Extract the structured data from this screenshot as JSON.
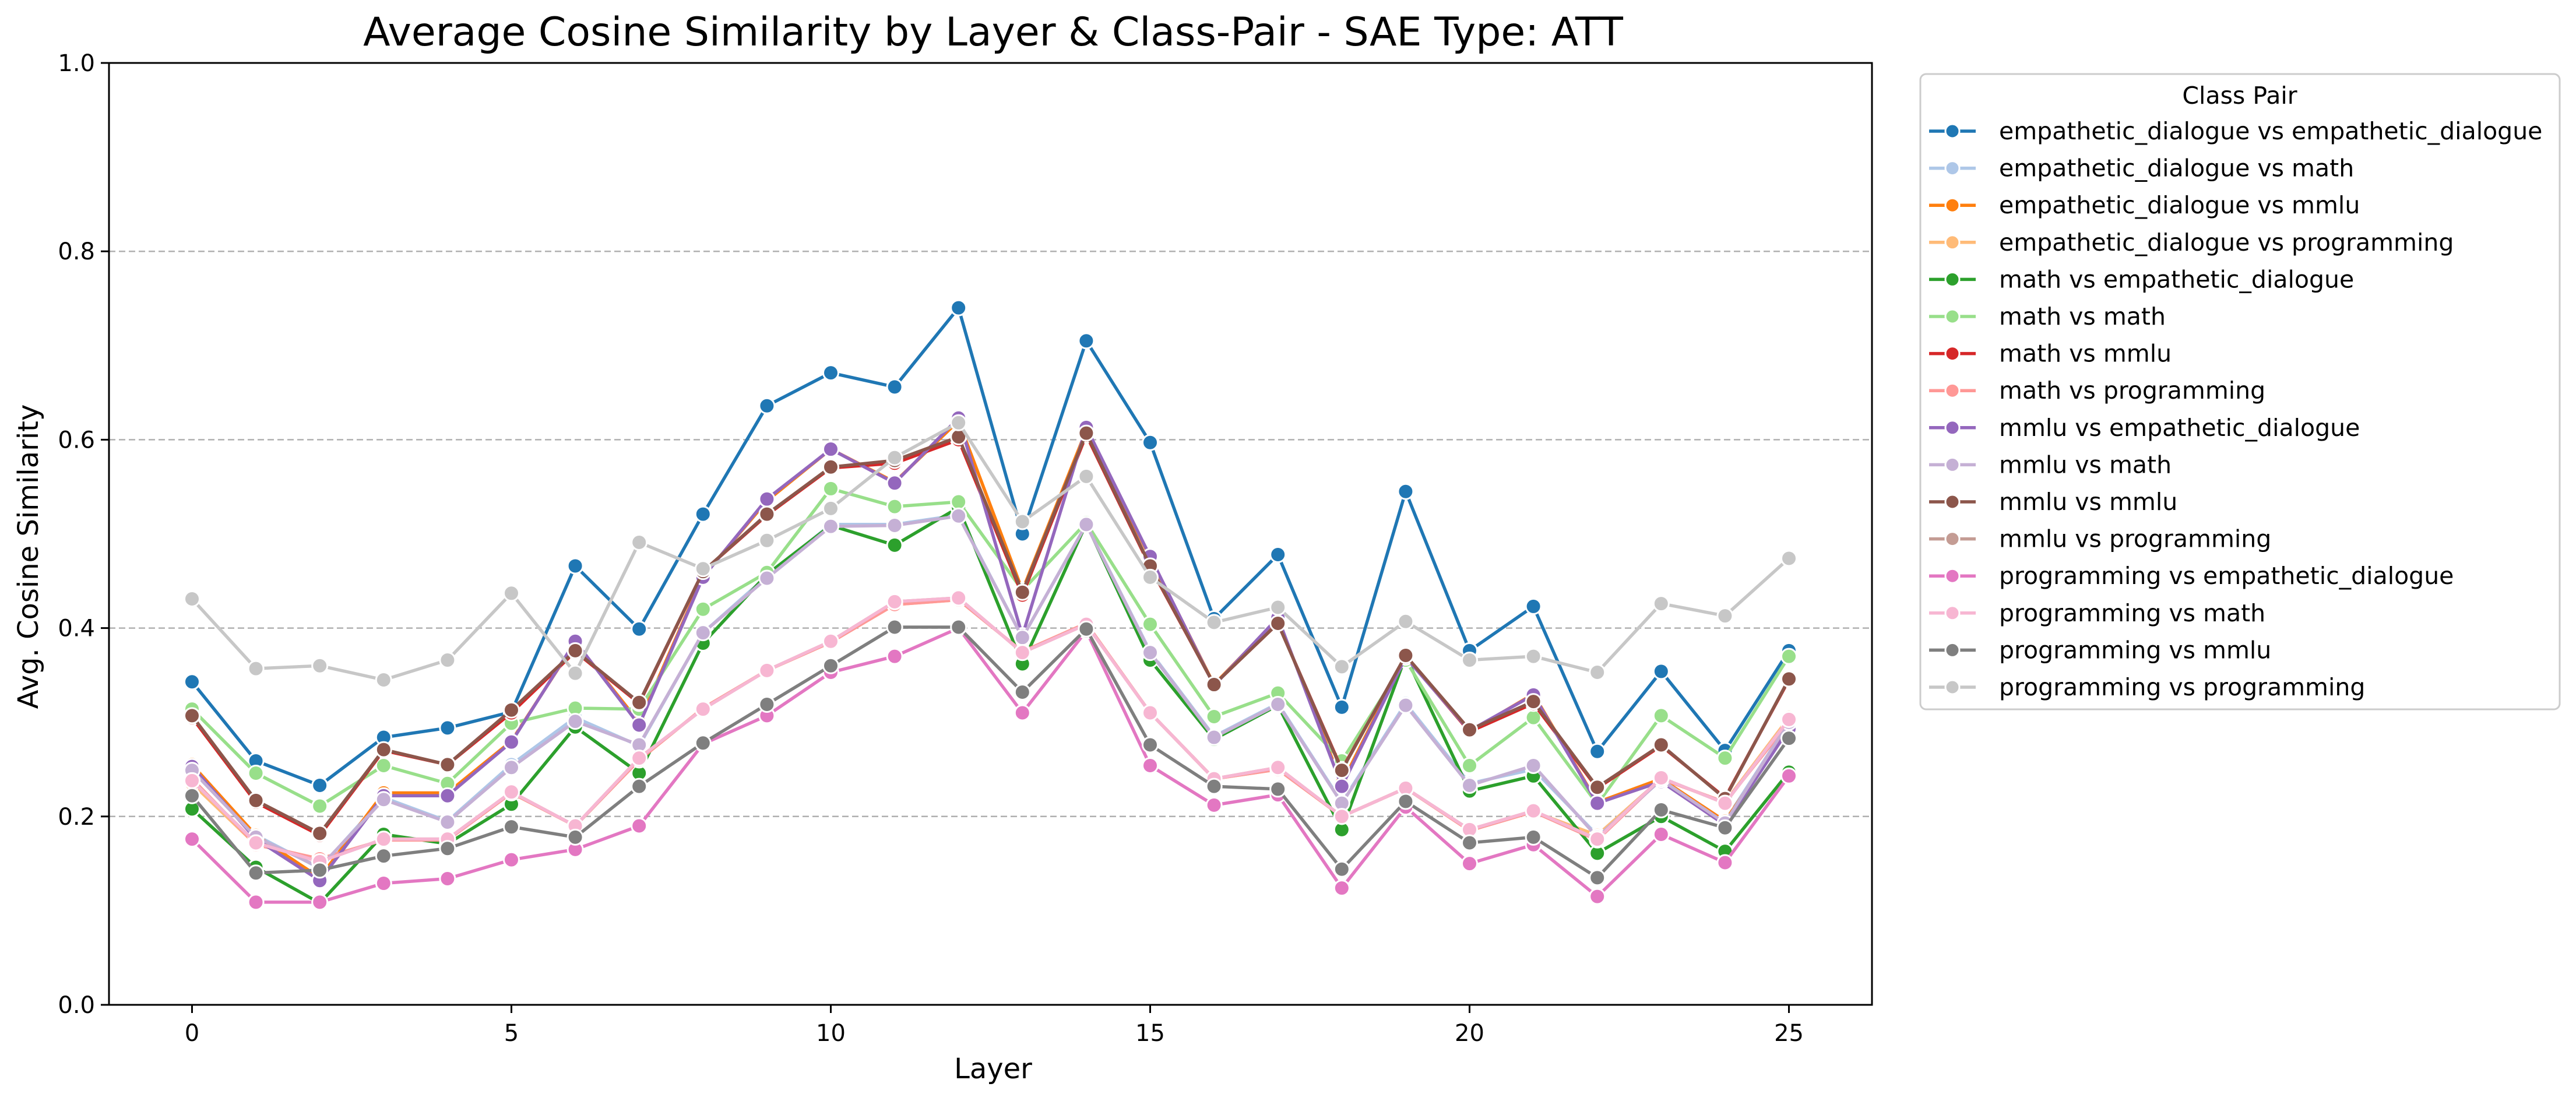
{
  "chart_data": {
    "type": "line",
    "title": "Average Cosine Similarity by Layer & Class-Pair - SAE Type: ATT",
    "xlabel": "Layer",
    "ylabel": "Avg. Cosine Similarity",
    "xlim": [
      -1.3,
      26.3
    ],
    "ylim": [
      0.0,
      1.0
    ],
    "xticks": [
      0,
      5,
      10,
      15,
      20,
      25
    ],
    "yticks": [
      0.0,
      0.2,
      0.4,
      0.6,
      0.8,
      1.0
    ],
    "ytick_labels": [
      "0.0",
      "0.2",
      "0.4",
      "0.6",
      "0.8",
      "1.0"
    ],
    "grid": "horizontal dashed",
    "legend_title": "Class Pair",
    "legend_position": "outside right",
    "x": [
      0,
      1,
      2,
      3,
      4,
      5,
      6,
      7,
      8,
      9,
      10,
      11,
      12,
      13,
      14,
      15,
      16,
      17,
      18,
      19,
      20,
      21,
      22,
      23,
      24,
      25
    ],
    "series": [
      {
        "name": "empathetic_dialogue vs empathetic_dialogue",
        "color": "#1f77b4",
        "values": [
          0.343,
          0.259,
          0.233,
          0.284,
          0.294,
          0.311,
          0.466,
          0.399,
          0.521,
          0.636,
          0.671,
          0.656,
          0.74,
          0.5,
          0.705,
          0.597,
          0.41,
          0.478,
          0.316,
          0.545,
          0.376,
          0.423,
          0.269,
          0.354,
          0.27,
          0.376
        ]
      },
      {
        "name": "empathetic_dialogue vs math",
        "color": "#aec7e8",
        "values": [
          0.25,
          0.18,
          0.145,
          0.22,
          0.195,
          0.255,
          0.305,
          0.275,
          0.395,
          0.455,
          0.51,
          0.51,
          0.52,
          0.39,
          0.51,
          0.375,
          0.285,
          0.32,
          0.215,
          0.32,
          0.235,
          0.25,
          0.18,
          0.24,
          0.195,
          0.3
        ]
      },
      {
        "name": "empathetic_dialogue vs mmlu",
        "color": "#ff7f0e",
        "values": [
          0.255,
          0.18,
          0.135,
          0.225,
          0.225,
          0.28,
          0.385,
          0.3,
          0.455,
          0.535,
          0.59,
          0.555,
          0.62,
          0.44,
          0.61,
          0.475,
          0.34,
          0.41,
          0.235,
          0.37,
          0.29,
          0.33,
          0.215,
          0.24,
          0.195,
          0.295
        ]
      },
      {
        "name": "empathetic_dialogue vs programming",
        "color": "#ffbb78",
        "values": [
          0.235,
          0.17,
          0.155,
          0.175,
          0.175,
          0.225,
          0.19,
          0.26,
          0.315,
          0.355,
          0.385,
          0.425,
          0.43,
          0.375,
          0.405,
          0.31,
          0.24,
          0.25,
          0.2,
          0.23,
          0.185,
          0.205,
          0.18,
          0.24,
          0.215,
          0.305
        ]
      },
      {
        "name": "math vs empathetic_dialogue",
        "color": "#2ca02c",
        "values": [
          0.208,
          0.146,
          0.108,
          0.181,
          0.171,
          0.213,
          0.295,
          0.246,
          0.384,
          0.457,
          0.509,
          0.488,
          0.528,
          0.362,
          0.511,
          0.366,
          0.282,
          0.318,
          0.186,
          0.37,
          0.227,
          0.243,
          0.161,
          0.2,
          0.163,
          0.247
        ]
      },
      {
        "name": "math vs math",
        "color": "#98df8a",
        "values": [
          0.314,
          0.246,
          0.211,
          0.254,
          0.235,
          0.299,
          0.315,
          0.314,
          0.42,
          0.459,
          0.548,
          0.529,
          0.534,
          0.44,
          0.512,
          0.404,
          0.306,
          0.331,
          0.259,
          0.366,
          0.254,
          0.305,
          0.213,
          0.307,
          0.262,
          0.37
        ]
      },
      {
        "name": "math vs mmlu",
        "color": "#d62728",
        "values": [
          0.305,
          0.215,
          0.18,
          0.27,
          0.255,
          0.31,
          0.375,
          0.32,
          0.46,
          0.52,
          0.57,
          0.575,
          0.6,
          0.435,
          0.605,
          0.465,
          0.34,
          0.405,
          0.25,
          0.37,
          0.29,
          0.32,
          0.23,
          0.275,
          0.22,
          0.345
        ]
      },
      {
        "name": "math vs programming",
        "color": "#ff9896",
        "values": [
          0.24,
          0.17,
          0.155,
          0.175,
          0.175,
          0.225,
          0.19,
          0.26,
          0.315,
          0.355,
          0.385,
          0.425,
          0.43,
          0.375,
          0.405,
          0.31,
          0.24,
          0.25,
          0.2,
          0.23,
          0.185,
          0.205,
          0.175,
          0.24,
          0.215,
          0.3
        ]
      },
      {
        "name": "mmlu vs empathetic_dialogue",
        "color": "#9467bd",
        "values": [
          0.253,
          0.176,
          0.132,
          0.222,
          0.222,
          0.279,
          0.386,
          0.297,
          0.454,
          0.537,
          0.59,
          0.554,
          0.623,
          0.392,
          0.613,
          0.476,
          0.339,
          0.411,
          0.232,
          0.369,
          0.291,
          0.329,
          0.214,
          0.237,
          0.191,
          0.293
        ]
      },
      {
        "name": "mmlu vs math",
        "color": "#c5b0d5",
        "values": [
          0.249,
          0.178,
          0.146,
          0.218,
          0.194,
          0.252,
          0.301,
          0.276,
          0.395,
          0.453,
          0.508,
          0.509,
          0.519,
          0.39,
          0.51,
          0.374,
          0.284,
          0.319,
          0.214,
          0.318,
          0.233,
          0.254,
          0.178,
          0.239,
          0.193,
          0.3
        ]
      },
      {
        "name": "mmlu vs mmlu",
        "color": "#8c564b",
        "values": [
          0.307,
          0.217,
          0.182,
          0.271,
          0.255,
          0.313,
          0.376,
          0.321,
          0.46,
          0.521,
          0.571,
          0.578,
          0.603,
          0.438,
          0.607,
          0.466,
          0.34,
          0.405,
          0.249,
          0.371,
          0.292,
          0.322,
          0.231,
          0.276,
          0.219,
          0.346
        ]
      },
      {
        "name": "mmlu vs programming",
        "color": "#c49c94",
        "values": [
          0.238,
          0.172,
          0.152,
          0.176,
          0.176,
          0.226,
          0.19,
          0.262,
          0.314,
          0.355,
          0.386,
          0.428,
          0.432,
          0.374,
          0.404,
          0.31,
          0.24,
          0.252,
          0.2,
          0.23,
          0.186,
          0.206,
          0.176,
          0.241,
          0.214,
          0.303
        ]
      },
      {
        "name": "programming vs empathetic_dialogue",
        "color": "#e377c2",
        "values": [
          0.176,
          0.109,
          0.109,
          0.129,
          0.134,
          0.154,
          0.165,
          0.19,
          0.277,
          0.307,
          0.353,
          0.37,
          0.4,
          0.31,
          0.397,
          0.254,
          0.212,
          0.223,
          0.124,
          0.21,
          0.15,
          0.17,
          0.115,
          0.181,
          0.151,
          0.243
        ]
      },
      {
        "name": "programming vs math",
        "color": "#f7b6d2",
        "values": [
          0.238,
          0.172,
          0.152,
          0.176,
          0.176,
          0.226,
          0.19,
          0.262,
          0.314,
          0.355,
          0.386,
          0.428,
          0.432,
          0.374,
          0.404,
          0.31,
          0.24,
          0.252,
          0.2,
          0.23,
          0.186,
          0.206,
          0.176,
          0.241,
          0.214,
          0.303
        ]
      },
      {
        "name": "programming vs mmlu",
        "color": "#7f7f7f",
        "values": [
          0.222,
          0.14,
          0.143,
          0.158,
          0.166,
          0.189,
          0.178,
          0.232,
          0.278,
          0.319,
          0.36,
          0.401,
          0.401,
          0.332,
          0.399,
          0.276,
          0.232,
          0.229,
          0.144,
          0.216,
          0.172,
          0.178,
          0.135,
          0.207,
          0.188,
          0.283
        ]
      },
      {
        "name": "programming vs programming",
        "color": "#c7c7c7",
        "values": [
          0.431,
          0.357,
          0.36,
          0.345,
          0.366,
          0.437,
          0.352,
          0.491,
          0.463,
          0.493,
          0.527,
          0.581,
          0.618,
          0.513,
          0.561,
          0.454,
          0.406,
          0.422,
          0.359,
          0.407,
          0.366,
          0.37,
          0.353,
          0.426,
          0.413,
          0.474
        ]
      }
    ]
  }
}
